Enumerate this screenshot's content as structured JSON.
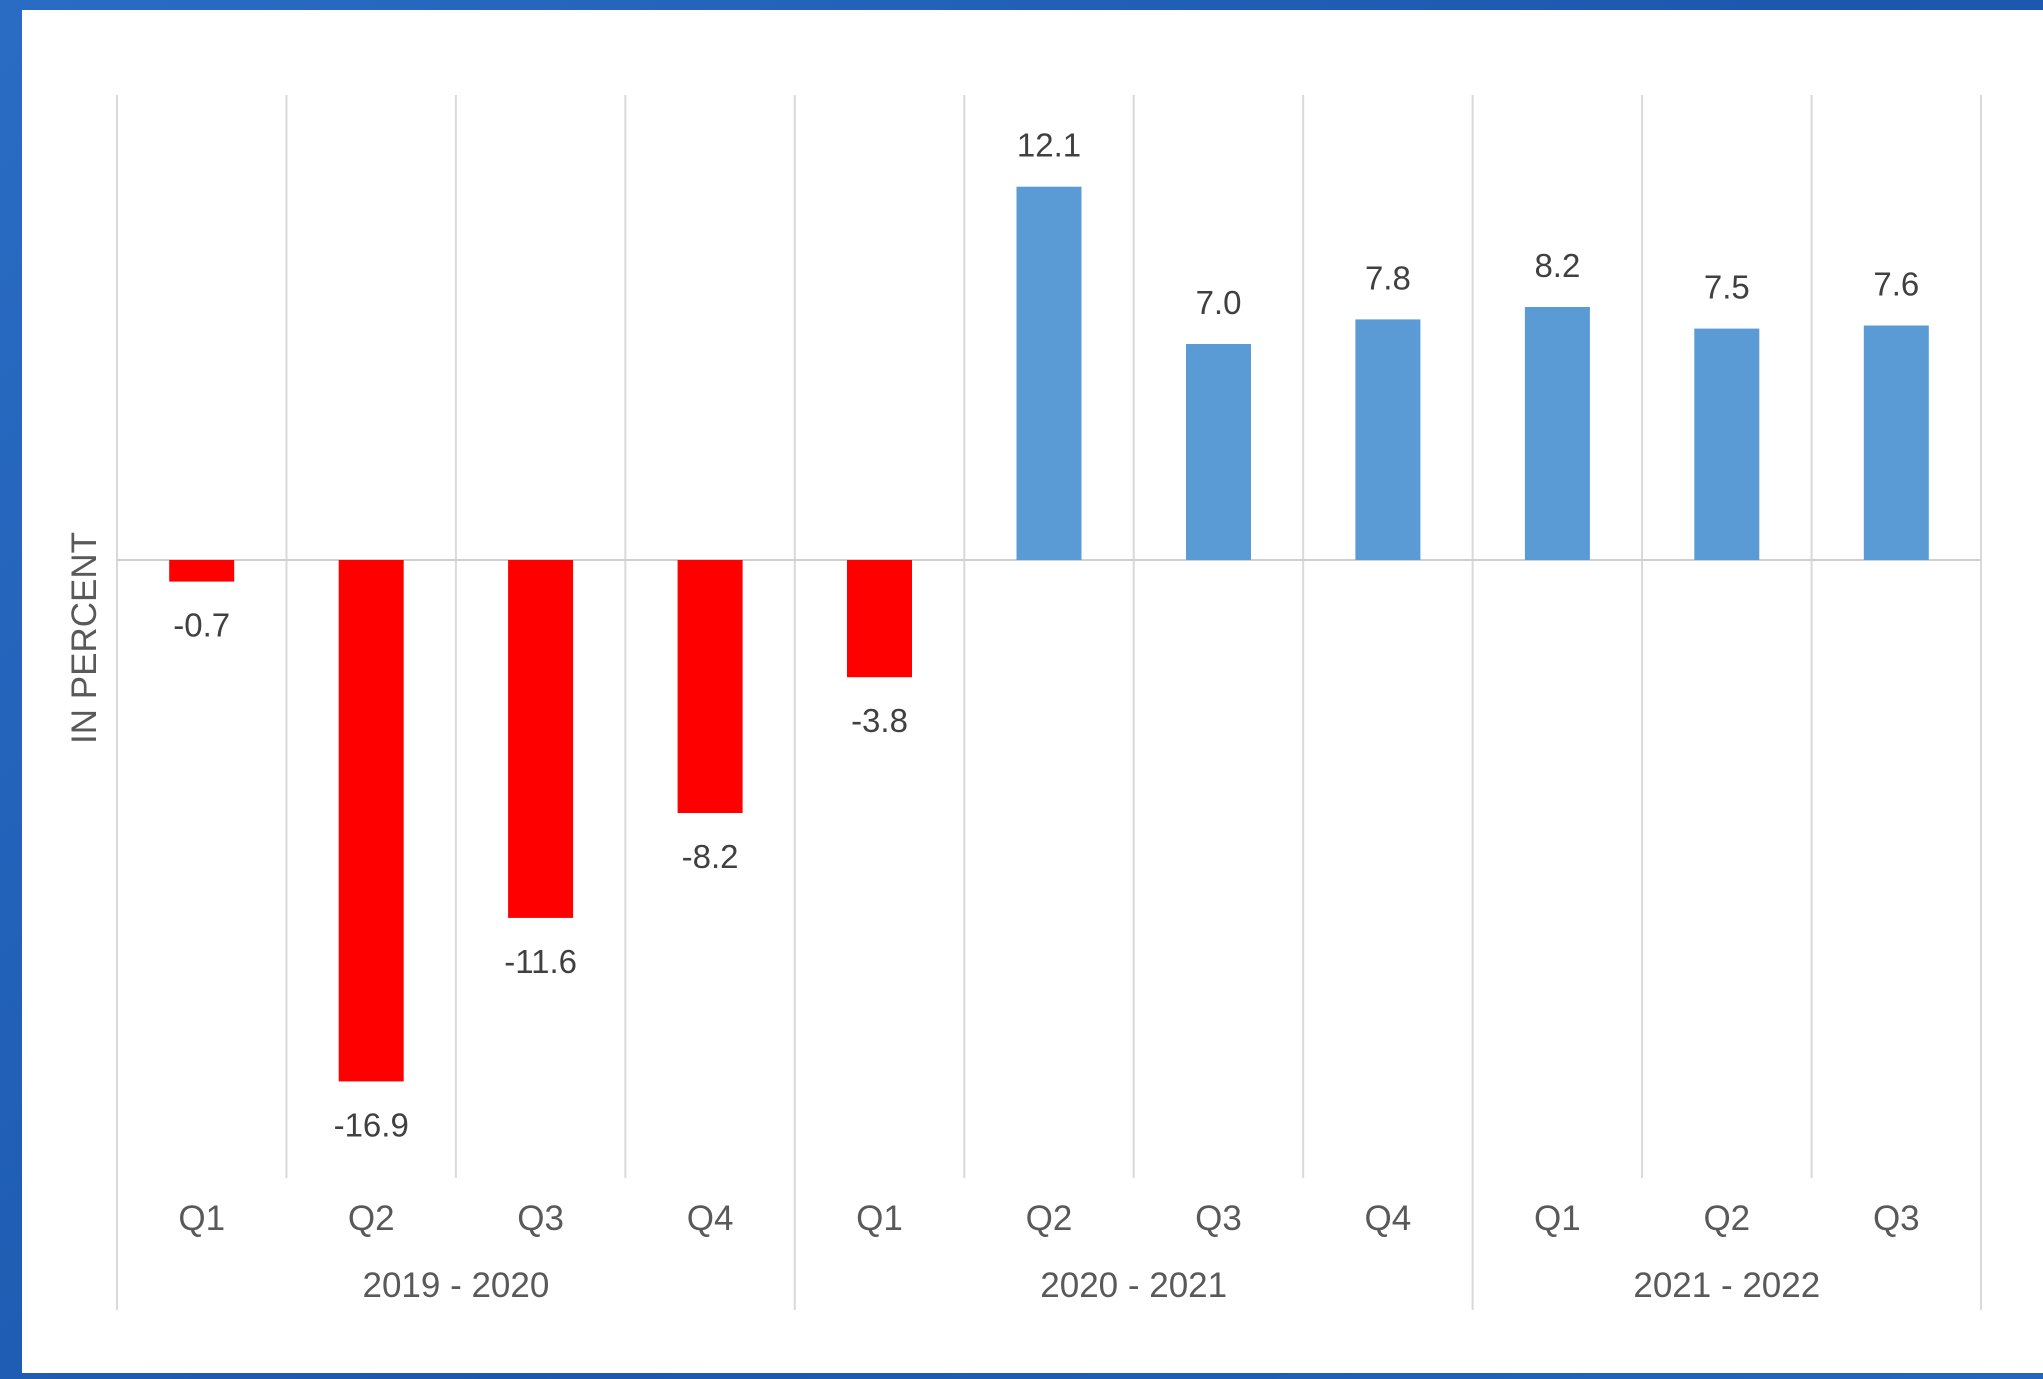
{
  "chart_data": {
    "type": "bar",
    "title": "",
    "xlabel": "",
    "ylabel": "IN PERCENT",
    "categories": [
      "Q1",
      "Q2",
      "Q3",
      "Q4",
      "Q1",
      "Q2",
      "Q3",
      "Q4",
      "Q1",
      "Q2",
      "Q3"
    ],
    "values": [
      -0.7,
      -16.9,
      -11.6,
      -8.2,
      -3.8,
      12.1,
      7.0,
      7.8,
      8.2,
      7.5,
      7.6
    ],
    "value_labels": [
      "-0.7",
      "-16.9",
      "-11.6",
      "-8.2",
      "-3.8",
      "12.1",
      "7.0",
      "7.8",
      "8.2",
      "7.5",
      "7.6"
    ],
    "groups": [
      {
        "label": "2019 - 2020",
        "start": 0,
        "end": 3
      },
      {
        "label": "2020 - 2021",
        "start": 4,
        "end": 7
      },
      {
        "label": "2021 - 2022",
        "start": 8,
        "end": 10
      }
    ],
    "ylim": [
      -20,
      15
    ],
    "grid": "vertical",
    "legend": "none",
    "colors": {
      "negative": "#ff0000",
      "positive": "#5b9bd5",
      "gridline": "#d9d9d9",
      "zero_line": "#d0d0d0"
    }
  }
}
